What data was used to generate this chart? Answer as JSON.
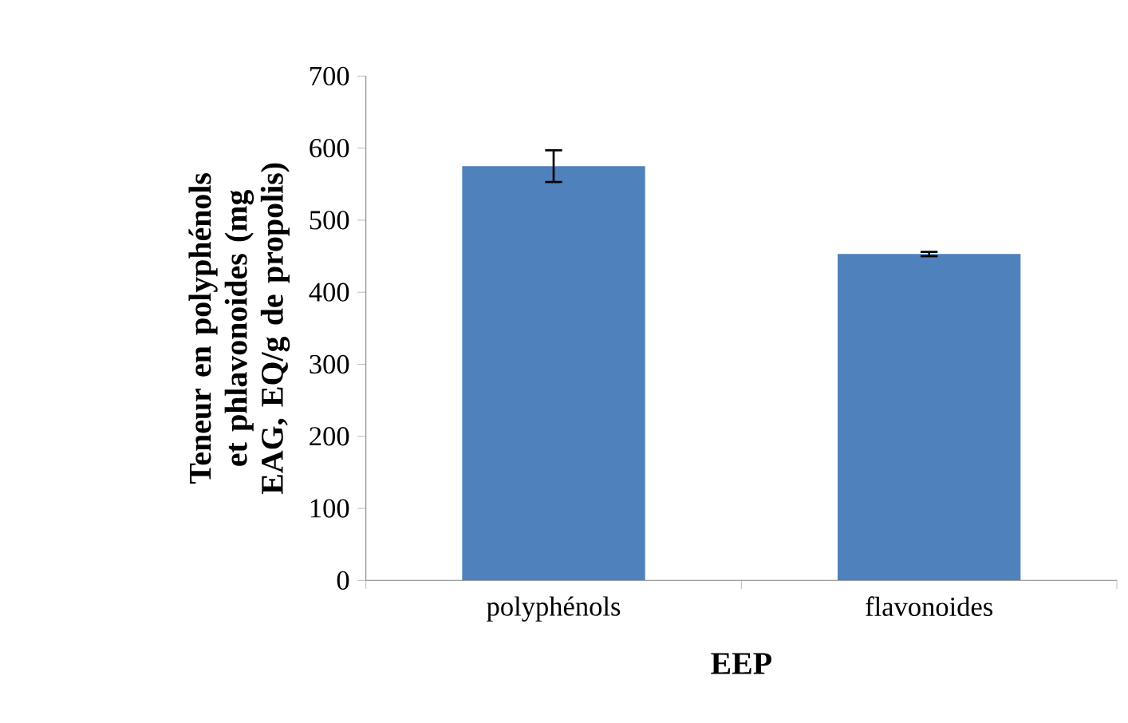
{
  "chart_data": {
    "type": "bar",
    "xlabel": "EEP",
    "ylabel": "Teneur en polyphénols et phlavonoides (mg EAG, EQ/g de propolis)",
    "categories": [
      "polyphénols",
      "flavonoides"
    ],
    "values": [
      575,
      453
    ],
    "errors": [
      22,
      3
    ],
    "color": "#4f81bd",
    "ylim": [
      0,
      700
    ],
    "yticks": [
      0,
      100,
      200,
      300,
      400,
      500,
      600,
      700
    ],
    "grid": false
  }
}
